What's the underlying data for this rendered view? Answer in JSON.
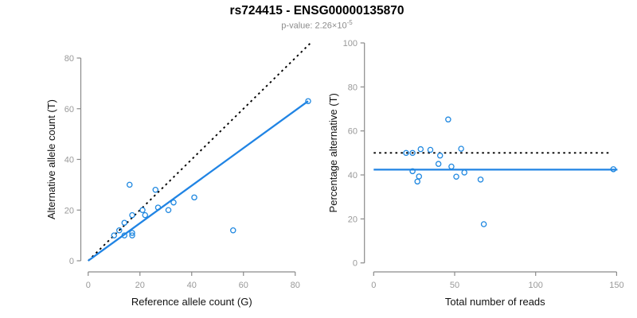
{
  "header": {
    "title": "rs724415 - ENSG00000135870",
    "subtitle_main": "p-value: 2.26×10",
    "subtitle_exponent": "-5"
  },
  "colors": {
    "point_blue": "#1E87E0",
    "line_blue": "#2084E4",
    "dotted_black": "#000000",
    "axis_gray": "#8A8A8A",
    "tick_label_gray": "#999999",
    "axis_title_black": "#111111"
  },
  "chart_data": [
    {
      "id": "allele-count-scatter",
      "type": "scatter",
      "xlabel": "Reference allele count (G)",
      "ylabel": "Alternative allele count (T)",
      "xlim": [
        0,
        85
      ],
      "ylim": [
        0,
        85
      ],
      "xticks": [
        0,
        20,
        40,
        60,
        80
      ],
      "yticks": [
        0,
        20,
        40,
        60,
        80
      ],
      "grid": false,
      "points": [
        [
          10,
          10
        ],
        [
          12,
          12
        ],
        [
          14,
          10
        ],
        [
          14,
          15
        ],
        [
          16,
          30
        ],
        [
          17,
          10
        ],
        [
          17,
          11
        ],
        [
          17,
          18
        ],
        [
          21,
          20
        ],
        [
          22,
          18
        ],
        [
          26,
          28
        ],
        [
          27,
          21
        ],
        [
          31,
          20
        ],
        [
          33,
          23
        ],
        [
          41,
          25
        ],
        [
          56,
          12
        ],
        [
          85,
          63
        ]
      ],
      "lines": [
        {
          "name": "identity-line",
          "style": "dotted",
          "color": "#000000",
          "from": [
            0,
            0
          ],
          "to": [
            86,
            86
          ]
        },
        {
          "name": "fit-line",
          "style": "solid",
          "color": "#2084E4",
          "from": [
            0,
            0
          ],
          "to": [
            85,
            63
          ]
        }
      ]
    },
    {
      "id": "percentage-vs-reads-scatter",
      "type": "scatter",
      "xlabel": "Total number of reads",
      "ylabel": "Percentage alternative (T)",
      "xlim": [
        0,
        150
      ],
      "ylim": [
        0,
        100
      ],
      "xticks": [
        0,
        50,
        100,
        150
      ],
      "yticks": [
        0,
        20,
        40,
        60,
        80,
        100
      ],
      "grid": false,
      "points": [
        [
          20,
          50
        ],
        [
          24,
          41.7
        ],
        [
          24,
          50
        ],
        [
          27,
          37
        ],
        [
          28,
          39.3
        ],
        [
          29,
          51.7
        ],
        [
          35,
          51.4
        ],
        [
          40,
          45
        ],
        [
          41,
          48.8
        ],
        [
          46,
          65.2
        ],
        [
          48,
          43.8
        ],
        [
          51,
          39.2
        ],
        [
          54,
          51.9
        ],
        [
          56,
          41.1
        ],
        [
          66,
          37.9
        ],
        [
          68,
          17.6
        ],
        [
          148,
          42.6
        ]
      ],
      "lines": [
        {
          "name": "reference-50pct-line",
          "style": "dotted",
          "color": "#000000",
          "from": [
            0,
            50
          ],
          "to": [
            147,
            50
          ]
        },
        {
          "name": "fit-line",
          "style": "solid",
          "color": "#2084E4",
          "from": [
            0,
            42.4
          ],
          "to": [
            150.5,
            42.4
          ]
        }
      ]
    }
  ]
}
